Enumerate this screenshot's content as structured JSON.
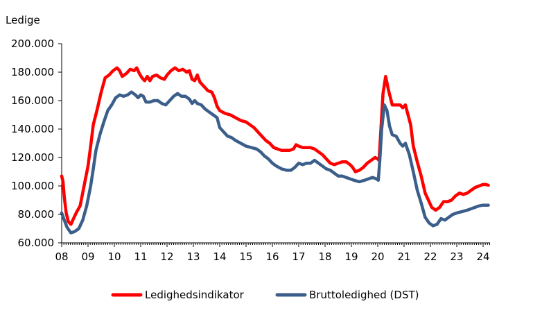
{
  "chart_data": {
    "type": "line",
    "title": "",
    "ylabel": "Ledige",
    "xlabel": "",
    "ylim": [
      60000,
      200000
    ],
    "xlim": [
      2008.0,
      2024.3
    ],
    "y_ticks": [
      60000,
      80000,
      100000,
      120000,
      140000,
      160000,
      180000,
      200000
    ],
    "y_tick_labels": [
      "60.000",
      "80.000",
      "100.000",
      "120.000",
      "140.000",
      "160.000",
      "180.000",
      "200.000"
    ],
    "x_ticks": [
      2008,
      2009,
      2010,
      2011,
      2012,
      2013,
      2014,
      2015,
      2016,
      2017,
      2018,
      2019,
      2020,
      2021,
      2022,
      2023,
      2024
    ],
    "x_tick_labels": [
      "08",
      "09",
      "10",
      "11",
      "12",
      "13",
      "14",
      "15",
      "16",
      "17",
      "18",
      "19",
      "20",
      "21",
      "22",
      "23",
      "24"
    ],
    "legend_position": "bottom",
    "series": [
      {
        "name": "Ledighedsindikator",
        "color": "#ff0000",
        "points": [
          [
            2008.0,
            107000
          ],
          [
            2008.05,
            103000
          ],
          [
            2008.1,
            92000
          ],
          [
            2008.17,
            81000
          ],
          [
            2008.25,
            75000
          ],
          [
            2008.35,
            73000
          ],
          [
            2008.45,
            77000
          ],
          [
            2008.55,
            81000
          ],
          [
            2008.7,
            86000
          ],
          [
            2008.85,
            100000
          ],
          [
            2009.0,
            114000
          ],
          [
            2009.1,
            128000
          ],
          [
            2009.2,
            143000
          ],
          [
            2009.35,
            154000
          ],
          [
            2009.5,
            166000
          ],
          [
            2009.65,
            176000
          ],
          [
            2009.8,
            178000
          ],
          [
            2009.95,
            181000
          ],
          [
            2010.1,
            183000
          ],
          [
            2010.2,
            181000
          ],
          [
            2010.3,
            177000
          ],
          [
            2010.45,
            179000
          ],
          [
            2010.6,
            182000
          ],
          [
            2010.75,
            181000
          ],
          [
            2010.85,
            183000
          ],
          [
            2010.95,
            179000
          ],
          [
            2011.05,
            176000
          ],
          [
            2011.15,
            174000
          ],
          [
            2011.25,
            177000
          ],
          [
            2011.35,
            174000
          ],
          [
            2011.45,
            177000
          ],
          [
            2011.6,
            178000
          ],
          [
            2011.75,
            176000
          ],
          [
            2011.9,
            175000
          ],
          [
            2012.0,
            178000
          ],
          [
            2012.15,
            181000
          ],
          [
            2012.3,
            183000
          ],
          [
            2012.45,
            181000
          ],
          [
            2012.6,
            182000
          ],
          [
            2012.75,
            180000
          ],
          [
            2012.85,
            181000
          ],
          [
            2012.95,
            175000
          ],
          [
            2013.05,
            174000
          ],
          [
            2013.15,
            178000
          ],
          [
            2013.25,
            173000
          ],
          [
            2013.4,
            170000
          ],
          [
            2013.55,
            167000
          ],
          [
            2013.7,
            166000
          ],
          [
            2013.8,
            162000
          ],
          [
            2013.9,
            156000
          ],
          [
            2014.0,
            153000
          ],
          [
            2014.2,
            151000
          ],
          [
            2014.4,
            150000
          ],
          [
            2014.6,
            148000
          ],
          [
            2014.8,
            146000
          ],
          [
            2015.0,
            145000
          ],
          [
            2015.15,
            143000
          ],
          [
            2015.3,
            141000
          ],
          [
            2015.45,
            138000
          ],
          [
            2015.6,
            135000
          ],
          [
            2015.75,
            132000
          ],
          [
            2015.9,
            130000
          ],
          [
            2016.05,
            127000
          ],
          [
            2016.2,
            126000
          ],
          [
            2016.35,
            125000
          ],
          [
            2016.5,
            125000
          ],
          [
            2016.65,
            125000
          ],
          [
            2016.8,
            126000
          ],
          [
            2016.9,
            129000
          ],
          [
            2017.0,
            128000
          ],
          [
            2017.15,
            127000
          ],
          [
            2017.3,
            127000
          ],
          [
            2017.45,
            127000
          ],
          [
            2017.6,
            126000
          ],
          [
            2017.75,
            124000
          ],
          [
            2017.9,
            122000
          ],
          [
            2018.05,
            119000
          ],
          [
            2018.2,
            116000
          ],
          [
            2018.35,
            115000
          ],
          [
            2018.5,
            116000
          ],
          [
            2018.65,
            117000
          ],
          [
            2018.8,
            117000
          ],
          [
            2018.95,
            115000
          ],
          [
            2019.05,
            113000
          ],
          [
            2019.15,
            110000
          ],
          [
            2019.3,
            111000
          ],
          [
            2019.45,
            113000
          ],
          [
            2019.6,
            116000
          ],
          [
            2019.75,
            118000
          ],
          [
            2019.9,
            120000
          ],
          [
            2020.0,
            119000
          ],
          [
            2020.05,
            118000
          ],
          [
            2020.12,
            140000
          ],
          [
            2020.2,
            165000
          ],
          [
            2020.3,
            177000
          ],
          [
            2020.4,
            168000
          ],
          [
            2020.55,
            157000
          ],
          [
            2020.7,
            157000
          ],
          [
            2020.85,
            157000
          ],
          [
            2020.95,
            155000
          ],
          [
            2021.05,
            157000
          ],
          [
            2021.15,
            150000
          ],
          [
            2021.25,
            143000
          ],
          [
            2021.35,
            128000
          ],
          [
            2021.5,
            117000
          ],
          [
            2021.65,
            107000
          ],
          [
            2021.8,
            95000
          ],
          [
            2021.95,
            89000
          ],
          [
            2022.05,
            85000
          ],
          [
            2022.2,
            83000
          ],
          [
            2022.35,
            85000
          ],
          [
            2022.5,
            89000
          ],
          [
            2022.65,
            89000
          ],
          [
            2022.8,
            90000
          ],
          [
            2022.95,
            93000
          ],
          [
            2023.1,
            95000
          ],
          [
            2023.25,
            94000
          ],
          [
            2023.4,
            95000
          ],
          [
            2023.55,
            97000
          ],
          [
            2023.7,
            99000
          ],
          [
            2023.85,
            100000
          ],
          [
            2024.0,
            101000
          ],
          [
            2024.1,
            101000
          ],
          [
            2024.2,
            100500
          ]
        ]
      },
      {
        "name": "Bruttoledighed (DST)",
        "color": "#3b5f8a",
        "points": [
          [
            2008.0,
            81000
          ],
          [
            2008.1,
            76000
          ],
          [
            2008.2,
            71000
          ],
          [
            2008.35,
            67000
          ],
          [
            2008.5,
            68000
          ],
          [
            2008.65,
            70000
          ],
          [
            2008.8,
            76000
          ],
          [
            2008.95,
            86000
          ],
          [
            2009.1,
            100000
          ],
          [
            2009.2,
            112000
          ],
          [
            2009.3,
            125000
          ],
          [
            2009.45,
            136000
          ],
          [
            2009.6,
            145000
          ],
          [
            2009.75,
            153000
          ],
          [
            2009.9,
            157000
          ],
          [
            2010.05,
            162000
          ],
          [
            2010.2,
            164000
          ],
          [
            2010.35,
            163000
          ],
          [
            2010.5,
            164000
          ],
          [
            2010.65,
            166000
          ],
          [
            2010.8,
            164000
          ],
          [
            2010.9,
            162000
          ],
          [
            2011.0,
            164000
          ],
          [
            2011.1,
            163000
          ],
          [
            2011.2,
            159000
          ],
          [
            2011.35,
            159000
          ],
          [
            2011.5,
            160000
          ],
          [
            2011.65,
            160000
          ],
          [
            2011.8,
            158000
          ],
          [
            2011.95,
            157000
          ],
          [
            2012.1,
            160000
          ],
          [
            2012.25,
            163000
          ],
          [
            2012.4,
            165000
          ],
          [
            2012.55,
            163000
          ],
          [
            2012.7,
            163000
          ],
          [
            2012.85,
            161000
          ],
          [
            2012.95,
            158000
          ],
          [
            2013.05,
            160000
          ],
          [
            2013.15,
            158000
          ],
          [
            2013.3,
            157000
          ],
          [
            2013.45,
            154000
          ],
          [
            2013.6,
            152000
          ],
          [
            2013.75,
            150000
          ],
          [
            2013.9,
            148000
          ],
          [
            2014.0,
            141000
          ],
          [
            2014.15,
            138000
          ],
          [
            2014.3,
            135000
          ],
          [
            2014.45,
            134000
          ],
          [
            2014.6,
            132000
          ],
          [
            2014.8,
            130000
          ],
          [
            2015.0,
            128000
          ],
          [
            2015.2,
            127000
          ],
          [
            2015.4,
            126000
          ],
          [
            2015.55,
            124000
          ],
          [
            2015.7,
            121000
          ],
          [
            2015.85,
            119000
          ],
          [
            2016.0,
            116000
          ],
          [
            2016.15,
            114000
          ],
          [
            2016.35,
            112000
          ],
          [
            2016.55,
            111000
          ],
          [
            2016.7,
            111000
          ],
          [
            2016.85,
            113000
          ],
          [
            2017.0,
            116000
          ],
          [
            2017.15,
            115000
          ],
          [
            2017.3,
            116000
          ],
          [
            2017.45,
            116000
          ],
          [
            2017.6,
            118000
          ],
          [
            2017.75,
            116000
          ],
          [
            2017.9,
            114000
          ],
          [
            2018.05,
            112000
          ],
          [
            2018.2,
            111000
          ],
          [
            2018.35,
            109000
          ],
          [
            2018.5,
            107000
          ],
          [
            2018.65,
            107000
          ],
          [
            2018.8,
            106000
          ],
          [
            2018.95,
            105000
          ],
          [
            2019.1,
            104000
          ],
          [
            2019.3,
            103000
          ],
          [
            2019.5,
            104000
          ],
          [
            2019.65,
            105000
          ],
          [
            2019.8,
            106000
          ],
          [
            2019.95,
            105000
          ],
          [
            2020.02,
            104000
          ],
          [
            2020.08,
            118000
          ],
          [
            2020.15,
            140000
          ],
          [
            2020.25,
            157000
          ],
          [
            2020.35,
            153000
          ],
          [
            2020.45,
            142000
          ],
          [
            2020.55,
            136000
          ],
          [
            2020.7,
            135000
          ],
          [
            2020.85,
            130000
          ],
          [
            2020.95,
            128000
          ],
          [
            2021.05,
            130000
          ],
          [
            2021.2,
            122000
          ],
          [
            2021.35,
            110000
          ],
          [
            2021.5,
            97000
          ],
          [
            2021.65,
            88000
          ],
          [
            2021.8,
            78000
          ],
          [
            2021.95,
            74000
          ],
          [
            2022.1,
            72000
          ],
          [
            2022.25,
            73000
          ],
          [
            2022.4,
            77000
          ],
          [
            2022.55,
            76000
          ],
          [
            2022.7,
            78000
          ],
          [
            2022.85,
            80000
          ],
          [
            2023.0,
            81000
          ],
          [
            2023.2,
            82000
          ],
          [
            2023.4,
            83000
          ],
          [
            2023.55,
            84000
          ],
          [
            2023.7,
            85000
          ],
          [
            2023.85,
            86000
          ],
          [
            2024.0,
            86500
          ],
          [
            2024.2,
            86500
          ]
        ]
      }
    ]
  }
}
